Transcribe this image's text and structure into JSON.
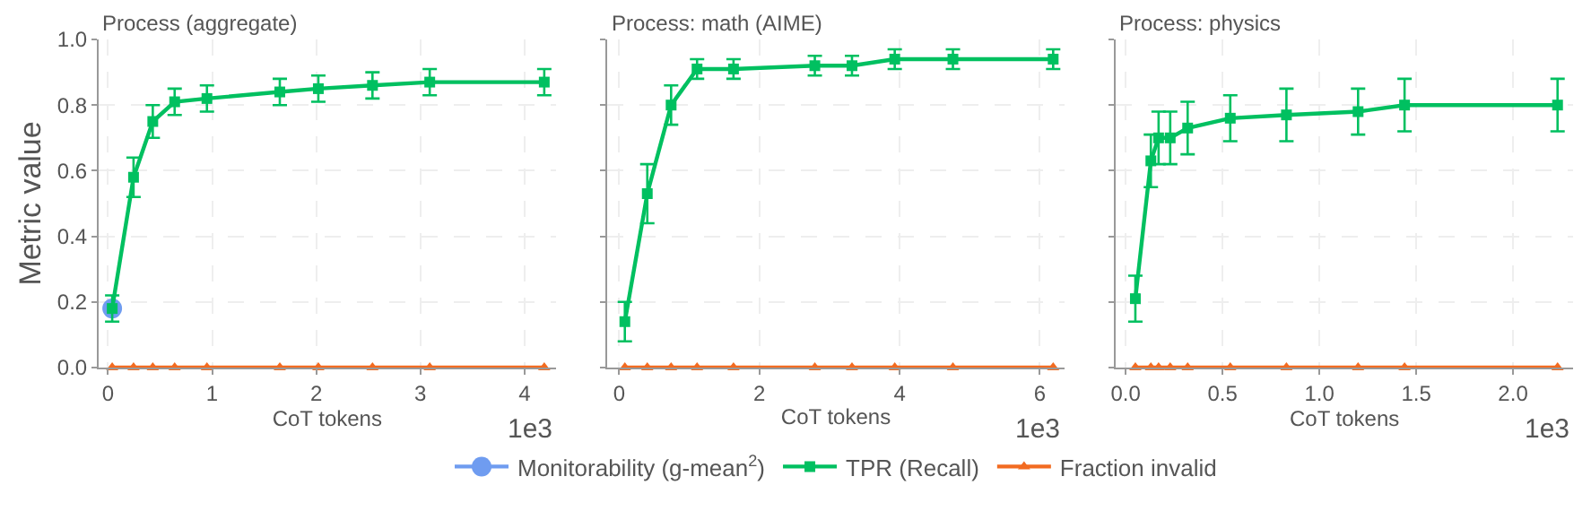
{
  "chart_data": [
    {
      "type": "line",
      "title": "Process (aggregate)",
      "xlabel": "CoT tokens",
      "ylabel": "Metric value",
      "annotations": [
        "1e3"
      ],
      "xlim": [
        -0.09,
        4.3
      ],
      "xticks": [
        0,
        1,
        2,
        3,
        4
      ],
      "ylim": [
        0,
        1.0
      ],
      "yticks": [
        {
          "value": 0,
          "label": "0.0"
        },
        0.2,
        0.4,
        0.6,
        0.8,
        {
          "value": 1,
          "label": "1.0"
        }
      ],
      "grid": true,
      "legend": "bottom",
      "series": [
        {
          "name": "Monitorability (g-mean$^{2}$)",
          "color": "#6f9cf0",
          "marker": "circle",
          "x": [
            0.04
          ],
          "values": [
            0.18
          ]
        },
        {
          "name": "TPR (Recall)",
          "color": "#00c060",
          "marker": "square",
          "x": [
            0.04,
            0.245,
            0.43,
            0.64,
            0.95,
            1.65,
            2.02,
            2.54,
            3.09,
            4.19
          ],
          "values": [
            0.18,
            0.58,
            0.75,
            0.81,
            0.82,
            0.84,
            0.85,
            0.86,
            0.87,
            0.87
          ],
          "errors": [
            0.04,
            0.06,
            0.05,
            0.04,
            0.04,
            0.04,
            0.04,
            0.04,
            0.04,
            0.04
          ]
        },
        {
          "name": "Fraction invalid",
          "color": "#f26b21",
          "marker": "triangle",
          "x": [
            0.04,
            0.245,
            0.43,
            0.64,
            0.95,
            1.65,
            2.02,
            2.54,
            3.09,
            4.19
          ],
          "values": [
            0,
            0,
            0,
            0,
            0,
            0,
            0,
            0,
            0,
            0
          ]
        }
      ]
    },
    {
      "type": "line",
      "title": "Process: math (AIME)",
      "xlabel": "CoT tokens",
      "annotations": [
        "1e3"
      ],
      "xlim": [
        -0.17,
        6.35
      ],
      "xticks": [
        0,
        2,
        4,
        6
      ],
      "ylim": [
        0,
        1.0
      ],
      "yticks": [
        0,
        0.2,
        0.4,
        0.6,
        0.8,
        1
      ],
      "tick_labels": "x",
      "grid": true,
      "series": [
        {
          "color": "#00c060",
          "marker": "square",
          "x": [
            0.08,
            0.4,
            0.74,
            1.11,
            1.63,
            2.79,
            3.32,
            3.93,
            4.76,
            6.19
          ],
          "values": [
            0.14,
            0.53,
            0.8,
            0.91,
            0.91,
            0.92,
            0.92,
            0.94,
            0.94,
            0.94
          ],
          "errors": [
            0.06,
            0.09,
            0.06,
            0.03,
            0.03,
            0.03,
            0.03,
            0.03,
            0.03,
            0.03
          ]
        },
        {
          "color": "#f26b21",
          "marker": "triangle",
          "x": [
            0.08,
            0.4,
            0.74,
            1.11,
            1.63,
            2.79,
            3.32,
            3.93,
            4.76,
            6.19
          ],
          "values": [
            0,
            0,
            0,
            0,
            0,
            0,
            0,
            0,
            0,
            0
          ]
        }
      ]
    },
    {
      "type": "line",
      "title": "Process: physics",
      "xlabel": "CoT tokens",
      "annotations": [
        "1e3"
      ],
      "xlim": [
        -0.05,
        2.31
      ],
      "xticks": [
        {
          "value": 0,
          "label": "0.0"
        },
        0.5,
        {
          "value": 1,
          "label": "1.0"
        },
        1.5,
        {
          "value": 2,
          "label": "2.0"
        }
      ],
      "ylim": [
        0,
        1.0
      ],
      "yticks": [
        0,
        0.2,
        0.4,
        0.6,
        0.8,
        1
      ],
      "tick_labels": "x",
      "grid": true,
      "series": [
        {
          "color": "#00c060",
          "marker": "square",
          "x": [
            0.05,
            0.13,
            0.17,
            0.23,
            0.32,
            0.54,
            0.83,
            1.2,
            1.44,
            2.23
          ],
          "values": [
            0.21,
            0.63,
            0.7,
            0.7,
            0.73,
            0.76,
            0.77,
            0.78,
            0.8,
            0.8
          ],
          "errors": [
            0.07,
            0.08,
            0.08,
            0.08,
            0.08,
            0.07,
            0.08,
            0.07,
            0.08,
            0.08
          ]
        },
        {
          "color": "#f26b21",
          "marker": "triangle",
          "x": [
            0.05,
            0.13,
            0.17,
            0.23,
            0.32,
            0.54,
            0.83,
            1.2,
            1.44,
            2.23
          ],
          "values": [
            0,
            0,
            0,
            0,
            0,
            0,
            0,
            0,
            0,
            0
          ]
        }
      ]
    }
  ]
}
